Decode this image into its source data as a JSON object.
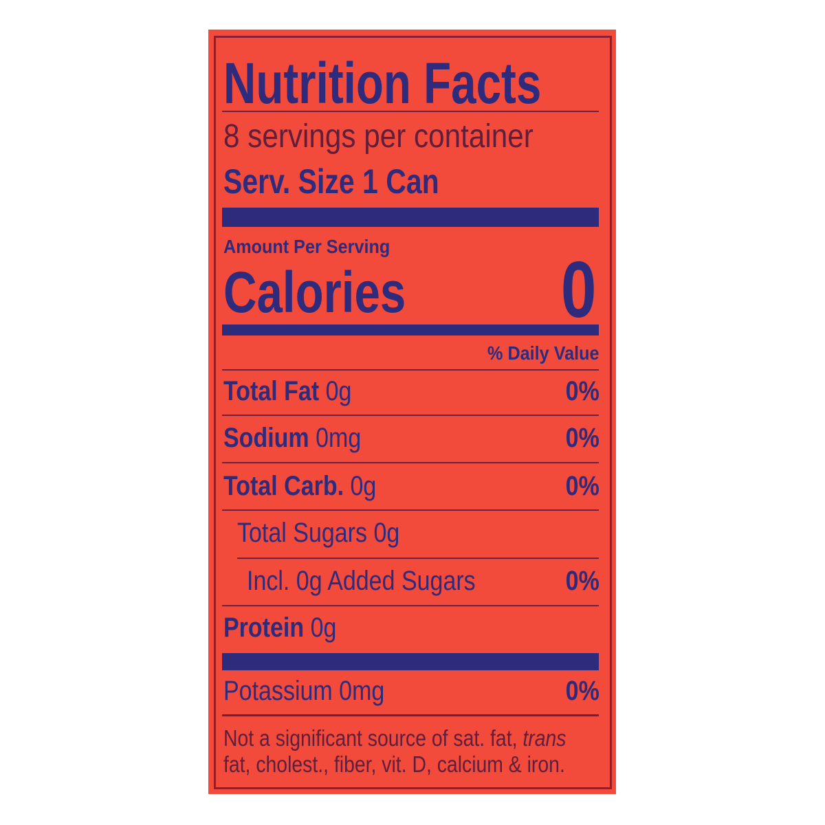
{
  "label": {
    "title": "Nutrition Facts",
    "servings_per_container": "8 servings per container",
    "serving_size": "Serv. Size 1 Can",
    "amount_per_serving": "Amount Per Serving",
    "calories_label": "Calories",
    "calories_value": "0",
    "daily_value_header": "% Daily Value",
    "nutrients": [
      {
        "name": "Total Fat",
        "amount": "0g",
        "dv": "0%"
      },
      {
        "name": "Sodium",
        "amount": "0mg",
        "dv": "0%"
      },
      {
        "name": "Total Carb.",
        "amount": "0g",
        "dv": "0%"
      },
      {
        "name": "Total Sugars 0g",
        "amount": "",
        "dv": ""
      },
      {
        "name": "Incl. 0g Added Sugars",
        "amount": "",
        "dv": "0%"
      },
      {
        "name": "Protein",
        "amount": "0g",
        "dv": ""
      },
      {
        "name": "Potassium 0mg",
        "amount": "",
        "dv": "0%"
      }
    ],
    "footnote_main": "Not a significant source of sat. fat, ",
    "footnote_italic": "trans",
    "footnote_line2": "fat, cholest., fiber, vit. D, calcium & iron."
  },
  "colors": {
    "background": "#f24b3b",
    "ink": "#2f2b7c",
    "text_dark": "#5e1e3c",
    "border": "#8a1f35"
  }
}
